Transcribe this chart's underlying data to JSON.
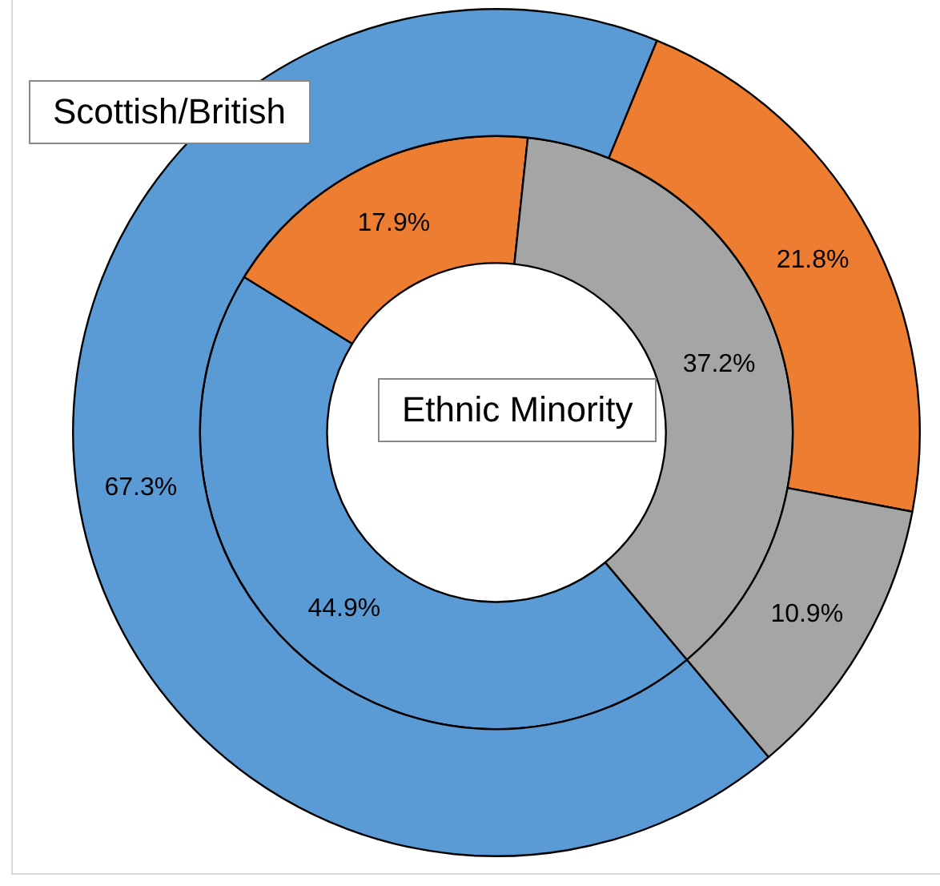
{
  "chart_data": {
    "type": "donut",
    "categories": [
      null,
      null,
      null
    ],
    "series": [
      {
        "name": "Scottish/British",
        "colors": [
          "#5b9bd5",
          "#ed7d31",
          "#a5a5a5"
        ],
        "values": [
          67.3,
          21.8,
          10.9
        ],
        "value_labels": [
          "67.3%",
          "21.8%",
          "10.9%"
        ]
      },
      {
        "name": "Ethnic Minority",
        "colors": [
          "#5b9bd5",
          "#ed7d31",
          "#a5a5a5"
        ],
        "values": [
          44.9,
          17.9,
          37.2
        ],
        "value_labels": [
          "44.9%",
          "17.9%",
          "37.2%"
        ]
      }
    ],
    "legend": false
  }
}
